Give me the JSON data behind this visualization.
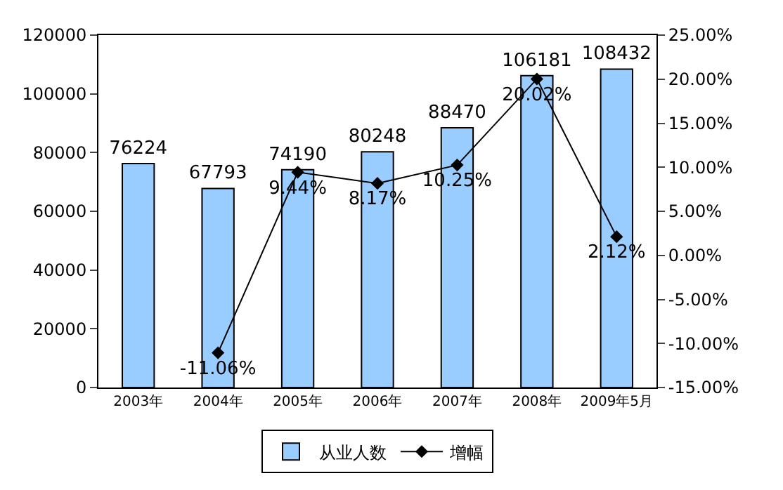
{
  "chart_data": {
    "type": "bar",
    "categories": [
      "2003年",
      "2004年",
      "2005年",
      "2006年",
      "2007年",
      "2008年",
      "2009年5月"
    ],
    "series": [
      {
        "name": "从业人数",
        "color": "#99ccff",
        "values": [
          76224,
          67793,
          74190,
          80248,
          88470,
          106181,
          108432
        ],
        "value_labels": [
          "76224",
          "67793",
          "74190",
          "80248",
          "88470",
          "106181",
          "108432"
        ]
      },
      {
        "name": "增幅",
        "type": "line",
        "axis": "y2",
        "color": "#000000",
        "marker": "diamond",
        "values": [
          null,
          -11.06,
          9.44,
          8.17,
          10.25,
          20.02,
          2.12
        ],
        "value_labels": [
          null,
          "-11.06%",
          "9.44%",
          "8.17%",
          "10.25%",
          "20.02%",
          "2.12%"
        ]
      }
    ],
    "ylim": [
      0,
      120000
    ],
    "yticks": [
      0,
      20000,
      40000,
      60000,
      80000,
      100000,
      120000
    ],
    "y2lim": [
      -15,
      25
    ],
    "y2ticks": [
      {
        "value": -15,
        "label": "-15.00%"
      },
      {
        "value": -10,
        "label": "-10.00%"
      },
      {
        "value": -5,
        "label": "-5.00%"
      },
      {
        "value": 0,
        "label": "0.00%"
      },
      {
        "value": 5,
        "label": "5.00%"
      },
      {
        "value": 10,
        "label": "10.00%"
      },
      {
        "value": 15,
        "label": "15.00%"
      },
      {
        "value": 20,
        "label": "20.00%"
      },
      {
        "value": 25,
        "label": "25.00%"
      }
    ],
    "legend": "bottom"
  }
}
